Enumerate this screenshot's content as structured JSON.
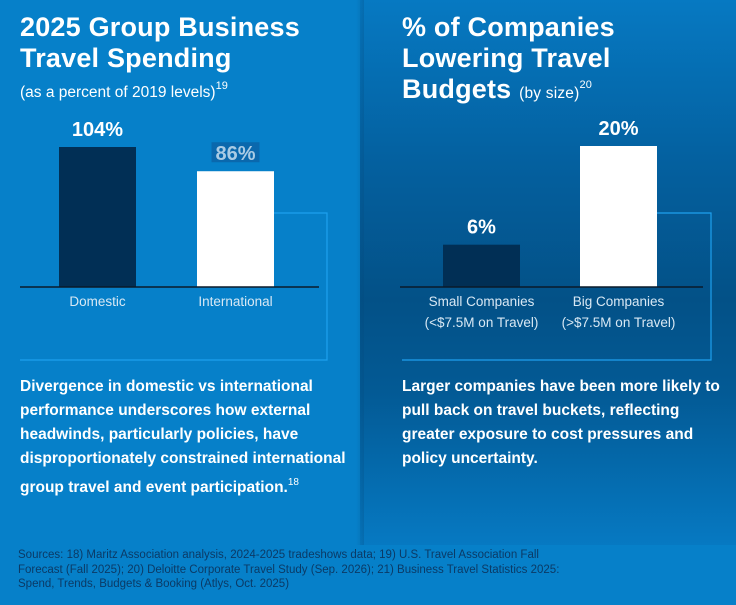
{
  "left_panel": {
    "title_line1": "2025 Group Business",
    "title_line2": "Travel Spending",
    "subtitle": "(as a percent of 2019 levels)",
    "subtitle_ref": "19",
    "body_text": "Divergence in domestic vs international performance underscores how external headwinds, particularly policies, have disproportionately constrained international group travel and event participation.",
    "body_ref": "18"
  },
  "right_panel": {
    "title_line1": "% of Companies",
    "title_line2": "Lowering Travel",
    "title_line3": "Budgets",
    "title_qualifier": "(by size)",
    "title_ref": "20",
    "body_text": "Larger companies have been more likely to pull back on travel buckets, reflecting greater exposure to cost pressures and policy uncertainty."
  },
  "sources": "Sources: 18) Maritz Association analysis, 2024-2025 tradeshows data; 19) U.S. Travel Association Fall Forecast (Fall 2025); 20) Deloitte Corporate Travel Study (Sep. 2026); 21) Business Travel Statistics 2025: Spend, Trends, Budgets & Booking (Atlys, Oct. 2025)",
  "colors": {
    "background": "#0680c9",
    "dark_bar": "#012f55",
    "light_bar": "#ffffff",
    "outline": "#1ea0ee",
    "baseline": "#0a1a2a"
  },
  "chart_data": [
    {
      "type": "bar",
      "title": "2025 Group Business Travel Spending",
      "subtitle": "(as a percent of 2019 levels)",
      "categories": [
        "Domestic",
        "International"
      ],
      "values": [
        104,
        86
      ],
      "value_labels": [
        "104%",
        "86%"
      ],
      "unit": "%",
      "xlabel": "",
      "ylabel": "",
      "ylim": [
        0,
        104
      ],
      "grid": false,
      "legend": "none"
    },
    {
      "type": "bar",
      "title": "% of Companies Lowering Travel Budgets (by size)",
      "categories": [
        [
          "Small Companies",
          "(<$7.5M on Travel)"
        ],
        [
          "Big Companies",
          "(>$7.5M on Travel)"
        ]
      ],
      "values": [
        6,
        20
      ],
      "value_labels": [
        "6%",
        "20%"
      ],
      "unit": "%",
      "xlabel": "",
      "ylabel": "",
      "ylim": [
        0,
        20
      ],
      "grid": false,
      "legend": "none"
    }
  ]
}
